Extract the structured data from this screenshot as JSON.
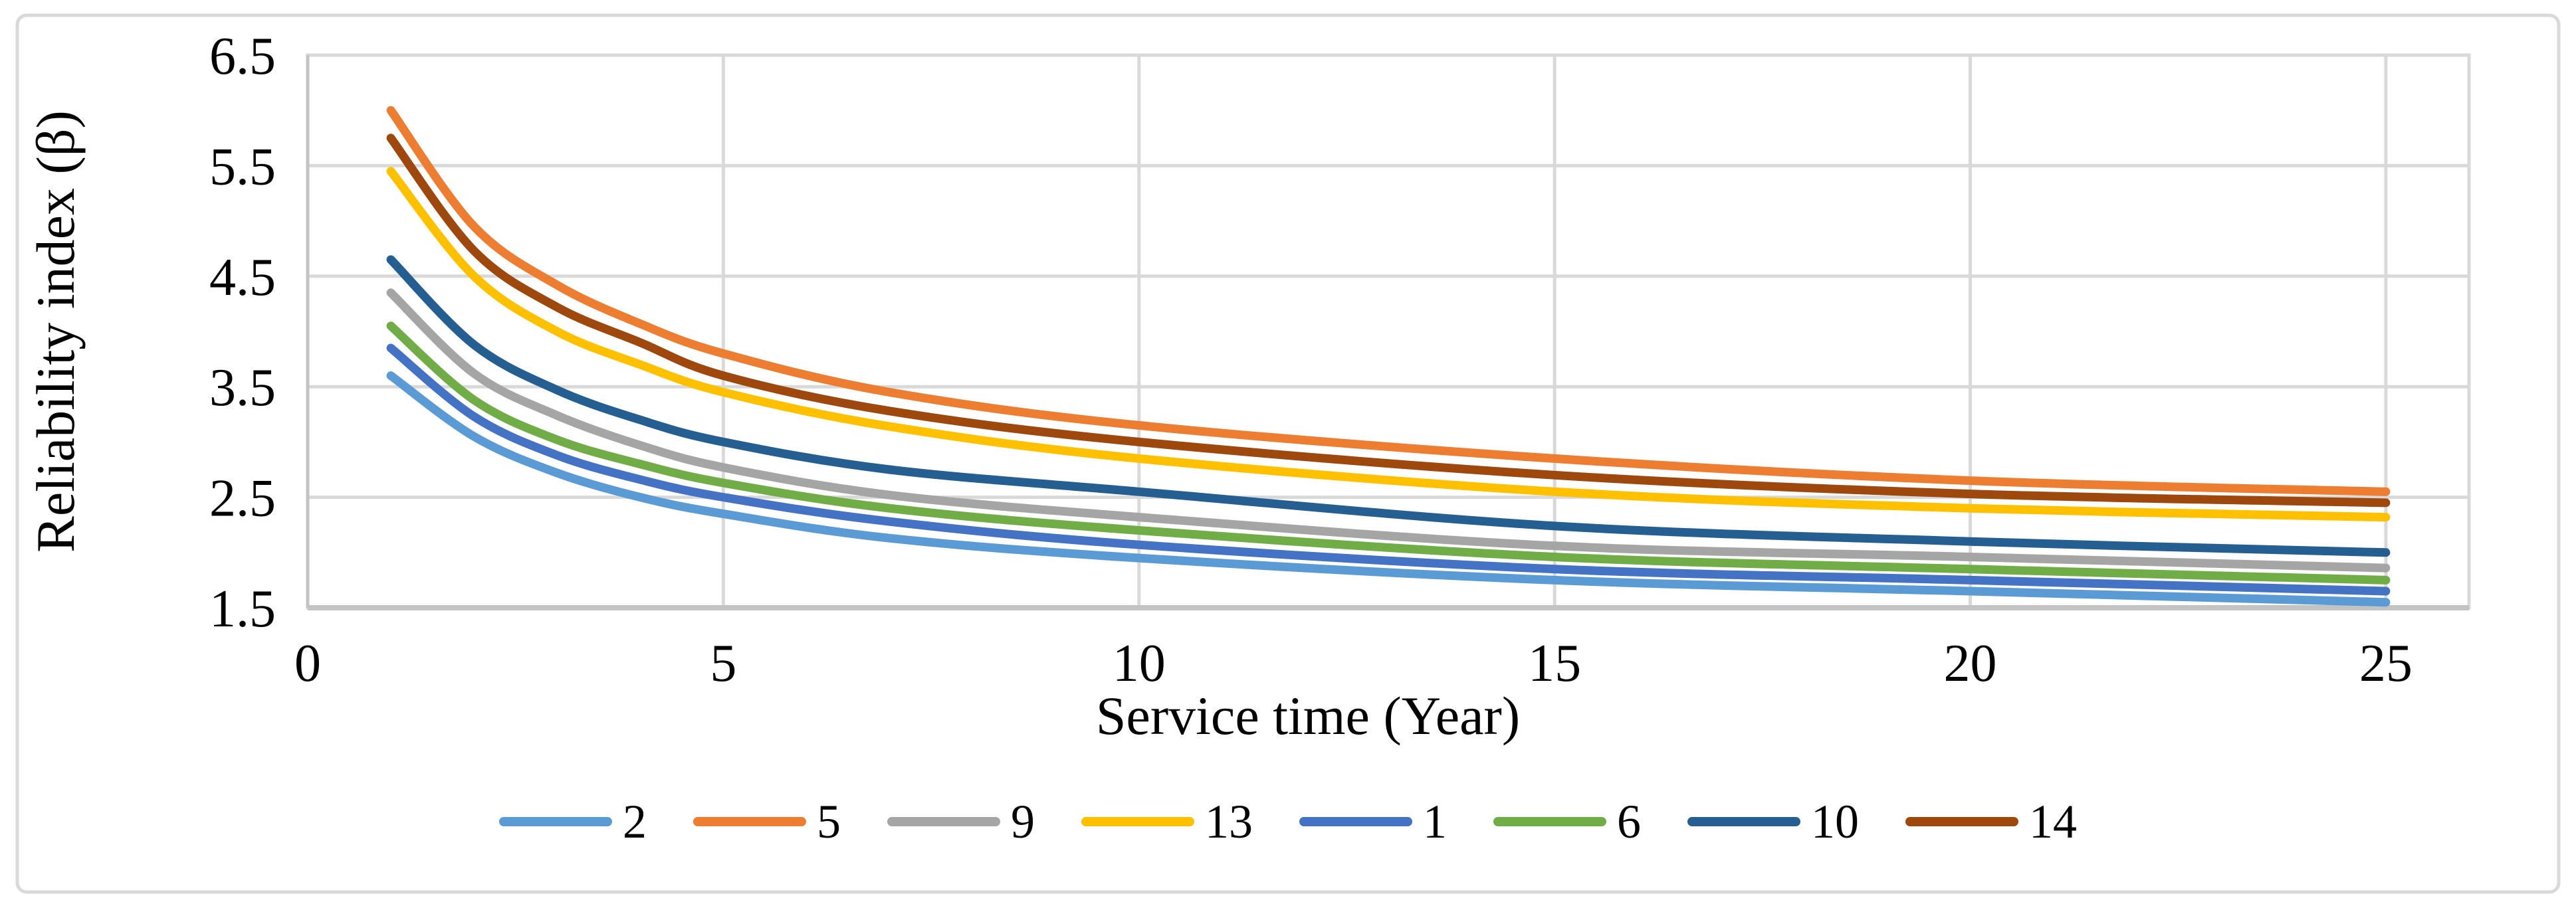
{
  "chart_data": {
    "type": "line",
    "title": "",
    "xlabel": "Service time (Year)",
    "ylabel": "Reliability index (β)",
    "x": [
      1,
      2,
      3,
      4,
      5,
      7,
      10,
      15,
      20,
      25
    ],
    "series": [
      {
        "name": "2",
        "color": "#5B9BD5",
        "values": [
          3.6,
          3.05,
          2.72,
          2.5,
          2.35,
          2.13,
          1.95,
          1.75,
          1.65,
          1.55
        ]
      },
      {
        "name": "5",
        "color": "#ED7D31",
        "values": [
          6.0,
          4.95,
          4.42,
          4.07,
          3.8,
          3.45,
          3.15,
          2.85,
          2.65,
          2.55
        ]
      },
      {
        "name": "9",
        "color": "#A5A5A5",
        "values": [
          4.35,
          3.62,
          3.24,
          2.97,
          2.77,
          2.52,
          2.32,
          2.06,
          1.96,
          1.86
        ]
      },
      {
        "name": "13",
        "color": "#FFC000",
        "values": [
          5.45,
          4.5,
          4.0,
          3.7,
          3.45,
          3.14,
          2.85,
          2.55,
          2.4,
          2.32
        ]
      },
      {
        "name": "1",
        "color": "#4472C4",
        "values": [
          3.85,
          3.23,
          2.88,
          2.66,
          2.5,
          2.28,
          2.07,
          1.85,
          1.75,
          1.65
        ]
      },
      {
        "name": "6",
        "color": "#70AD47",
        "values": [
          4.05,
          3.38,
          3.02,
          2.8,
          2.63,
          2.4,
          2.2,
          1.96,
          1.85,
          1.75
        ]
      },
      {
        "name": "10",
        "color": "#255E91",
        "values": [
          4.65,
          3.88,
          3.47,
          3.2,
          3.0,
          2.75,
          2.55,
          2.24,
          2.1,
          2.0
        ]
      },
      {
        "name": "14",
        "color": "#9E480E",
        "values": [
          5.75,
          4.73,
          4.22,
          3.9,
          3.6,
          3.28,
          3.0,
          2.7,
          2.53,
          2.45
        ]
      }
    ],
    "xticks": [
      0,
      5,
      10,
      15,
      20,
      25
    ],
    "yticks": [
      1.5,
      2.5,
      3.5,
      4.5,
      5.5,
      6.5
    ],
    "xlim": [
      0,
      26
    ],
    "ylim": [
      1.5,
      6.5
    ],
    "grid": true,
    "legend_position": "bottom",
    "line_width": 13,
    "colors": {
      "gridline": "#D9D9D9",
      "axis_line": "#C3C3C3",
      "figure_border": "#D9D9D9",
      "text": "#000000",
      "background": "#FFFFFF"
    }
  }
}
